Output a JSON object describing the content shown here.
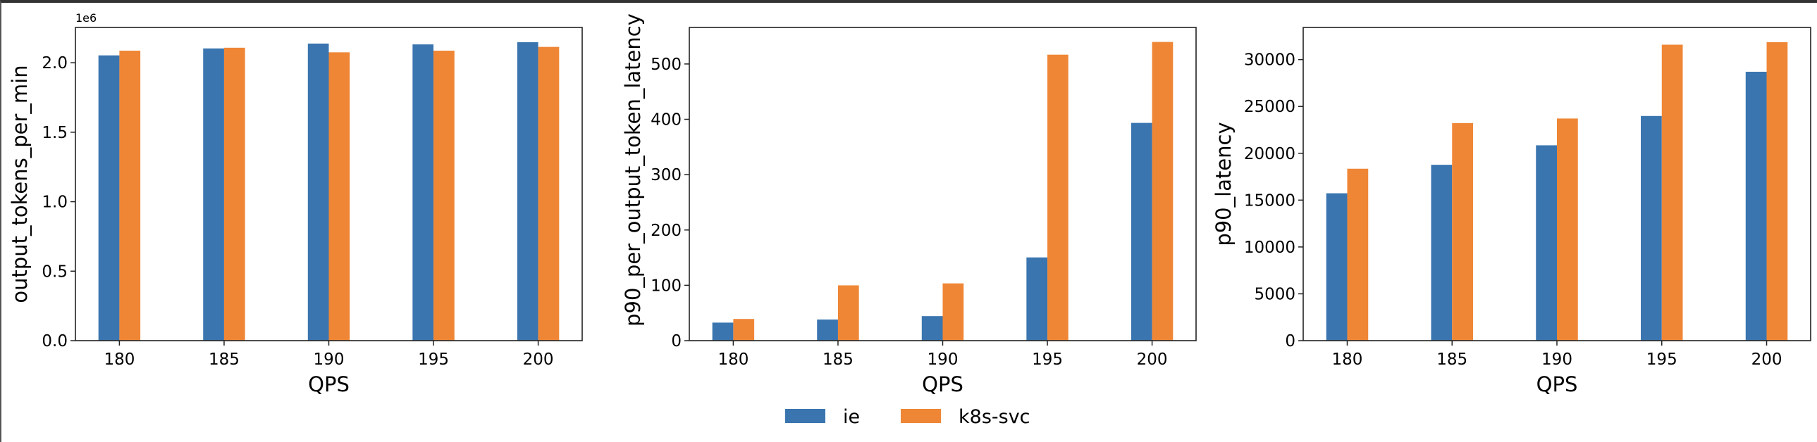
{
  "legend": {
    "placement": "bottom-center",
    "items": [
      {
        "label": "ie",
        "color": "#3a75af"
      },
      {
        "label": "k8s-svc",
        "color": "#ef8636"
      }
    ]
  },
  "chart_data": [
    {
      "type": "bar",
      "xlabel": "QPS",
      "ylabel": "output_tokens_per_min",
      "offset_label": "1e6",
      "categories": [
        180,
        185,
        190,
        195,
        200
      ],
      "xlim": [
        177.9,
        202.1
      ],
      "ylim": [
        0,
        2.254
      ],
      "yticks": [
        0.0,
        0.5,
        1.0,
        1.5,
        2.0
      ],
      "ytick_labels": [
        "0.0",
        "0.5",
        "1.0",
        "1.5",
        "2.0"
      ],
      "grid": false,
      "series": [
        {
          "name": "ie",
          "values": [
            2.053,
            2.103,
            2.138,
            2.132,
            2.148
          ]
        },
        {
          "name": "k8s-svc",
          "values": [
            2.087,
            2.108,
            2.075,
            2.087,
            2.114
          ]
        }
      ]
    },
    {
      "type": "bar",
      "xlabel": "QPS",
      "ylabel": "p90_per_output_token_latency",
      "categories": [
        180,
        185,
        190,
        195,
        200
      ],
      "xlim": [
        177.9,
        202.1
      ],
      "ylim": [
        0,
        566
      ],
      "yticks": [
        0,
        100,
        200,
        300,
        400,
        500
      ],
      "ytick_labels": [
        "0",
        "100",
        "200",
        "300",
        "400",
        "500"
      ],
      "grid": false,
      "series": [
        {
          "name": "ie",
          "values": [
            32.6,
            38.2,
            44.3,
            150.4,
            393.5
          ]
        },
        {
          "name": "k8s-svc",
          "values": [
            39.2,
            99.9,
            103.5,
            516.8,
            539.8
          ]
        }
      ]
    },
    {
      "type": "bar",
      "xlabel": "QPS",
      "ylabel": "p90_latency",
      "categories": [
        180,
        185,
        190,
        195,
        200
      ],
      "xlim": [
        177.9,
        202.1
      ],
      "ylim": [
        0,
        33430
      ],
      "yticks": [
        0,
        5000,
        10000,
        15000,
        20000,
        25000,
        30000
      ],
      "ytick_labels": [
        "0",
        "5000",
        "10000",
        "15000",
        "20000",
        "25000",
        "30000"
      ],
      "grid": false,
      "series": [
        {
          "name": "ie",
          "values": [
            15730,
            18770,
            20850,
            23980,
            28700
          ]
        },
        {
          "name": "k8s-svc",
          "values": [
            18350,
            23225,
            23710,
            31590,
            31860
          ]
        }
      ]
    }
  ]
}
